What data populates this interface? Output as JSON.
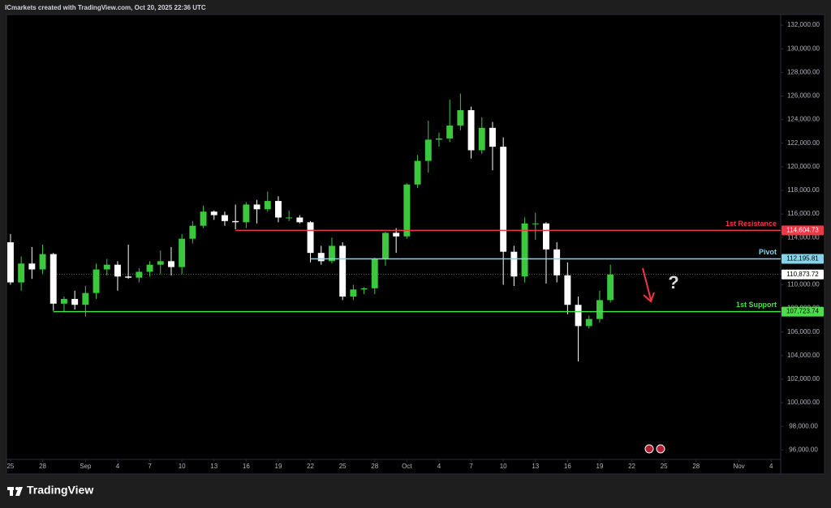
{
  "chart_data": {
    "type": "candlestick",
    "title": "ICmarkets created with TradingView.com, Oct 20, 2025 22:36 UTC",
    "brand": "TradingView",
    "up_color": "#3cc83c",
    "down_color": "#ffffff",
    "x": [
      "2025-08-25",
      "2025-08-26",
      "2025-08-27",
      "2025-08-28",
      "2025-08-29",
      "2025-08-30",
      "2025-08-31",
      "2025-09-01",
      "2025-09-02",
      "2025-09-03",
      "2025-09-04",
      "2025-09-05",
      "2025-09-06",
      "2025-09-07",
      "2025-09-08",
      "2025-09-09",
      "2025-09-10",
      "2025-09-11",
      "2025-09-12",
      "2025-09-13",
      "2025-09-14",
      "2025-09-15",
      "2025-09-16",
      "2025-09-17",
      "2025-09-18",
      "2025-09-19",
      "2025-09-20",
      "2025-09-21",
      "2025-09-22",
      "2025-09-23",
      "2025-09-24",
      "2025-09-25",
      "2025-09-26",
      "2025-09-27",
      "2025-09-28",
      "2025-09-29",
      "2025-09-30",
      "2025-10-01",
      "2025-10-02",
      "2025-10-03",
      "2025-10-04",
      "2025-10-05",
      "2025-10-06",
      "2025-10-07",
      "2025-10-08",
      "2025-10-09",
      "2025-10-10",
      "2025-10-11",
      "2025-10-12",
      "2025-10-13",
      "2025-10-14",
      "2025-10-15",
      "2025-10-16",
      "2025-10-17",
      "2025-10-18",
      "2025-10-19",
      "2025-10-20"
    ],
    "open": [
      113600,
      110200,
      111800,
      111300,
      112600,
      108400,
      108800,
      108300,
      109300,
      111300,
      111700,
      110700,
      110600,
      111100,
      111700,
      112000,
      111500,
      113900,
      115000,
      116200,
      115900,
      115400,
      115300,
      116800,
      116400,
      117100,
      115700,
      115700,
      115300,
      112700,
      112000,
      113300,
      109000,
      109600,
      109700,
      112200,
      114400,
      114100,
      118500,
      120500,
      122300,
      122400,
      123500,
      124800,
      121400,
      123300,
      121700,
      112800,
      110700,
      115200,
      115200,
      113000,
      110800,
      108300,
      106500,
      107100,
      108700
    ],
    "high": [
      114300,
      112400,
      113200,
      113400,
      112700,
      109000,
      109500,
      109900,
      111800,
      112200,
      112000,
      113400,
      111400,
      112000,
      112900,
      113200,
      114300,
      115400,
      116700,
      116300,
      116200,
      116800,
      117000,
      117200,
      117900,
      117500,
      116300,
      115900,
      115400,
      113300,
      114000,
      113600,
      110000,
      109800,
      112300,
      114500,
      114800,
      118600,
      121000,
      123900,
      122900,
      125700,
      126200,
      125100,
      124200,
      123800,
      122500,
      113300,
      115700,
      116100,
      115300,
      113600,
      111900,
      109000,
      107400,
      109500,
      111700
    ],
    "low": [
      110000,
      109500,
      110500,
      110900,
      107800,
      107700,
      107900,
      107300,
      108800,
      110800,
      109500,
      110500,
      110200,
      110700,
      110900,
      110800,
      110900,
      113500,
      114800,
      115500,
      115000,
      114700,
      114800,
      115200,
      116200,
      115300,
      115400,
      115200,
      111900,
      111700,
      111800,
      108700,
      108700,
      109200,
      109200,
      111600,
      112700,
      113900,
      118200,
      119500,
      121700,
      122100,
      123100,
      120700,
      121100,
      119700,
      110000,
      109900,
      110200,
      113800,
      110100,
      110200,
      107500,
      103500,
      106300,
      106800,
      108500
    ],
    "close": [
      110200,
      111800,
      111300,
      112600,
      108400,
      108800,
      108300,
      109300,
      111300,
      111700,
      110700,
      110600,
      111100,
      111700,
      112000,
      111500,
      113900,
      115000,
      116200,
      115900,
      115400,
      115300,
      116800,
      116400,
      117100,
      115700,
      115700,
      115300,
      112700,
      112000,
      113300,
      109000,
      109600,
      109700,
      112200,
      114400,
      114100,
      118500,
      120500,
      122300,
      122400,
      123500,
      124800,
      121400,
      123300,
      121700,
      112800,
      110700,
      115200,
      115200,
      113000,
      110800,
      108300,
      106500,
      107100,
      108700,
      110873.72
    ],
    "last_price": {
      "value": 110873.72,
      "label": "110,873.72"
    },
    "levels": [
      {
        "name": "1st Resistance",
        "value": 114604.73,
        "value_label": "114,604.73",
        "color": "#f23645",
        "start": "2025-09-15"
      },
      {
        "name": "Pivot",
        "value": 112195.81,
        "value_label": "112,195.81",
        "color": "#86d4ea",
        "start": "2025-09-22"
      },
      {
        "name": "1st Support",
        "value": 107723.74,
        "value_label": "107,723.74",
        "color": "#4ade4a",
        "start": "2025-08-29"
      }
    ],
    "annotations": [
      "?"
    ],
    "xlim": [
      "2025-08-24T15:00:00Z",
      "2025-11-04T21:30:00Z"
    ],
    "xticks": [
      {
        "value": "2025-08-25",
        "label": "25"
      },
      {
        "value": "2025-08-28",
        "label": "28"
      },
      {
        "value": "2025-09-01",
        "label": "Sep"
      },
      {
        "value": "2025-09-04",
        "label": "4"
      },
      {
        "value": "2025-09-07",
        "label": "7"
      },
      {
        "value": "2025-09-10",
        "label": "10"
      },
      {
        "value": "2025-09-13",
        "label": "13"
      },
      {
        "value": "2025-09-16",
        "label": "16"
      },
      {
        "value": "2025-09-19",
        "label": "19"
      },
      {
        "value": "2025-09-22",
        "label": "22"
      },
      {
        "value": "2025-09-25",
        "label": "25"
      },
      {
        "value": "2025-09-28",
        "label": "28"
      },
      {
        "value": "2025-10-01",
        "label": "Oct"
      },
      {
        "value": "2025-10-04",
        "label": "4"
      },
      {
        "value": "2025-10-07",
        "label": "7"
      },
      {
        "value": "2025-10-10",
        "label": "10"
      },
      {
        "value": "2025-10-13",
        "label": "13"
      },
      {
        "value": "2025-10-16",
        "label": "16"
      },
      {
        "value": "2025-10-19",
        "label": "19"
      },
      {
        "value": "2025-10-22",
        "label": "22"
      },
      {
        "value": "2025-10-25",
        "label": "25"
      },
      {
        "value": "2025-10-28",
        "label": "28"
      },
      {
        "value": "2025-11-01",
        "label": "Nov"
      },
      {
        "value": "2025-11-04",
        "label": "4"
      }
    ],
    "ylim": [
      95200,
      132900
    ],
    "yticks": [
      {
        "value": 96000,
        "label": "96,000.00"
      },
      {
        "value": 98000,
        "label": "98,000.00"
      },
      {
        "value": 100000,
        "label": "100,000.00"
      },
      {
        "value": 102000,
        "label": "102,000.00"
      },
      {
        "value": 104000,
        "label": "104,000.00"
      },
      {
        "value": 106000,
        "label": "106,000.00"
      },
      {
        "value": 108000,
        "label": "108,000.00"
      },
      {
        "value": 110000,
        "label": "110,000.00"
      },
      {
        "value": 112000,
        "label": "112,000.00"
      },
      {
        "value": 114000,
        "label": "114,000.00"
      },
      {
        "value": 116000,
        "label": "116,000.00"
      },
      {
        "value": 118000,
        "label": "118,000.00"
      },
      {
        "value": 120000,
        "label": "120,000.00"
      },
      {
        "value": 122000,
        "label": "122,000.00"
      },
      {
        "value": 124000,
        "label": "124,000.00"
      },
      {
        "value": 126000,
        "label": "126,000.00"
      },
      {
        "value": 128000,
        "label": "128,000.00"
      },
      {
        "value": 130000,
        "label": "130,000.00"
      },
      {
        "value": 132000,
        "label": "132,000.00"
      }
    ],
    "grid": false
  }
}
